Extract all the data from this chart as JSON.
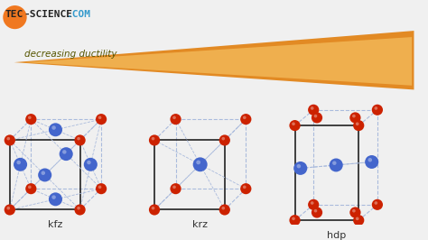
{
  "bg_color": "#f0f0f0",
  "red_color": "#cc2200",
  "blue_color": "#4466cc",
  "edge_color_solid": "#222222",
  "edge_color_dashed": "#aabbdd",
  "arrow_color_light": "#f5c060",
  "arrow_color_dark": "#e07800",
  "arrow_text": "decreasing ductility",
  "labels": [
    "kfz",
    "krz",
    "hdp"
  ],
  "logo_orange": "#f07820",
  "logo_blue": "#3399cc",
  "logo_dark": "#222222",
  "title_fontsize": 9
}
